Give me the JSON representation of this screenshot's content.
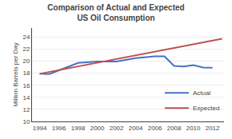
{
  "chart_data": {
    "type": "line",
    "title": "Comparison of Actual and Expected\nUS Oil Consumption",
    "ylabel": "Million Barrels per Day",
    "series": [
      {
        "name": "Actual",
        "color": "#4472C4",
        "x": [
          1994,
          1995,
          1998,
          2000,
          2002,
          2004,
          2006,
          2007,
          2008,
          2009,
          2010,
          2011,
          2012
        ],
        "values": [
          17.9,
          17.85,
          19.7,
          19.95,
          19.95,
          20.5,
          20.8,
          20.8,
          19.2,
          19.1,
          19.35,
          18.95,
          18.9
        ]
      },
      {
        "name": "Expected",
        "color": "#C0504D",
        "x": [
          1994,
          2013
        ],
        "values": [
          17.9,
          23.7
        ]
      }
    ],
    "xlim": [
      1993.2,
      2013.2
    ],
    "xticks": [
      1994,
      1996,
      1998,
      2000,
      2002,
      2004,
      2006,
      2008,
      2010,
      2012
    ],
    "ylim": [
      10,
      25.5
    ],
    "yticks": [
      10,
      12,
      14,
      16,
      18,
      20,
      22,
      24
    ],
    "grid": "y",
    "legend": "lower right"
  }
}
